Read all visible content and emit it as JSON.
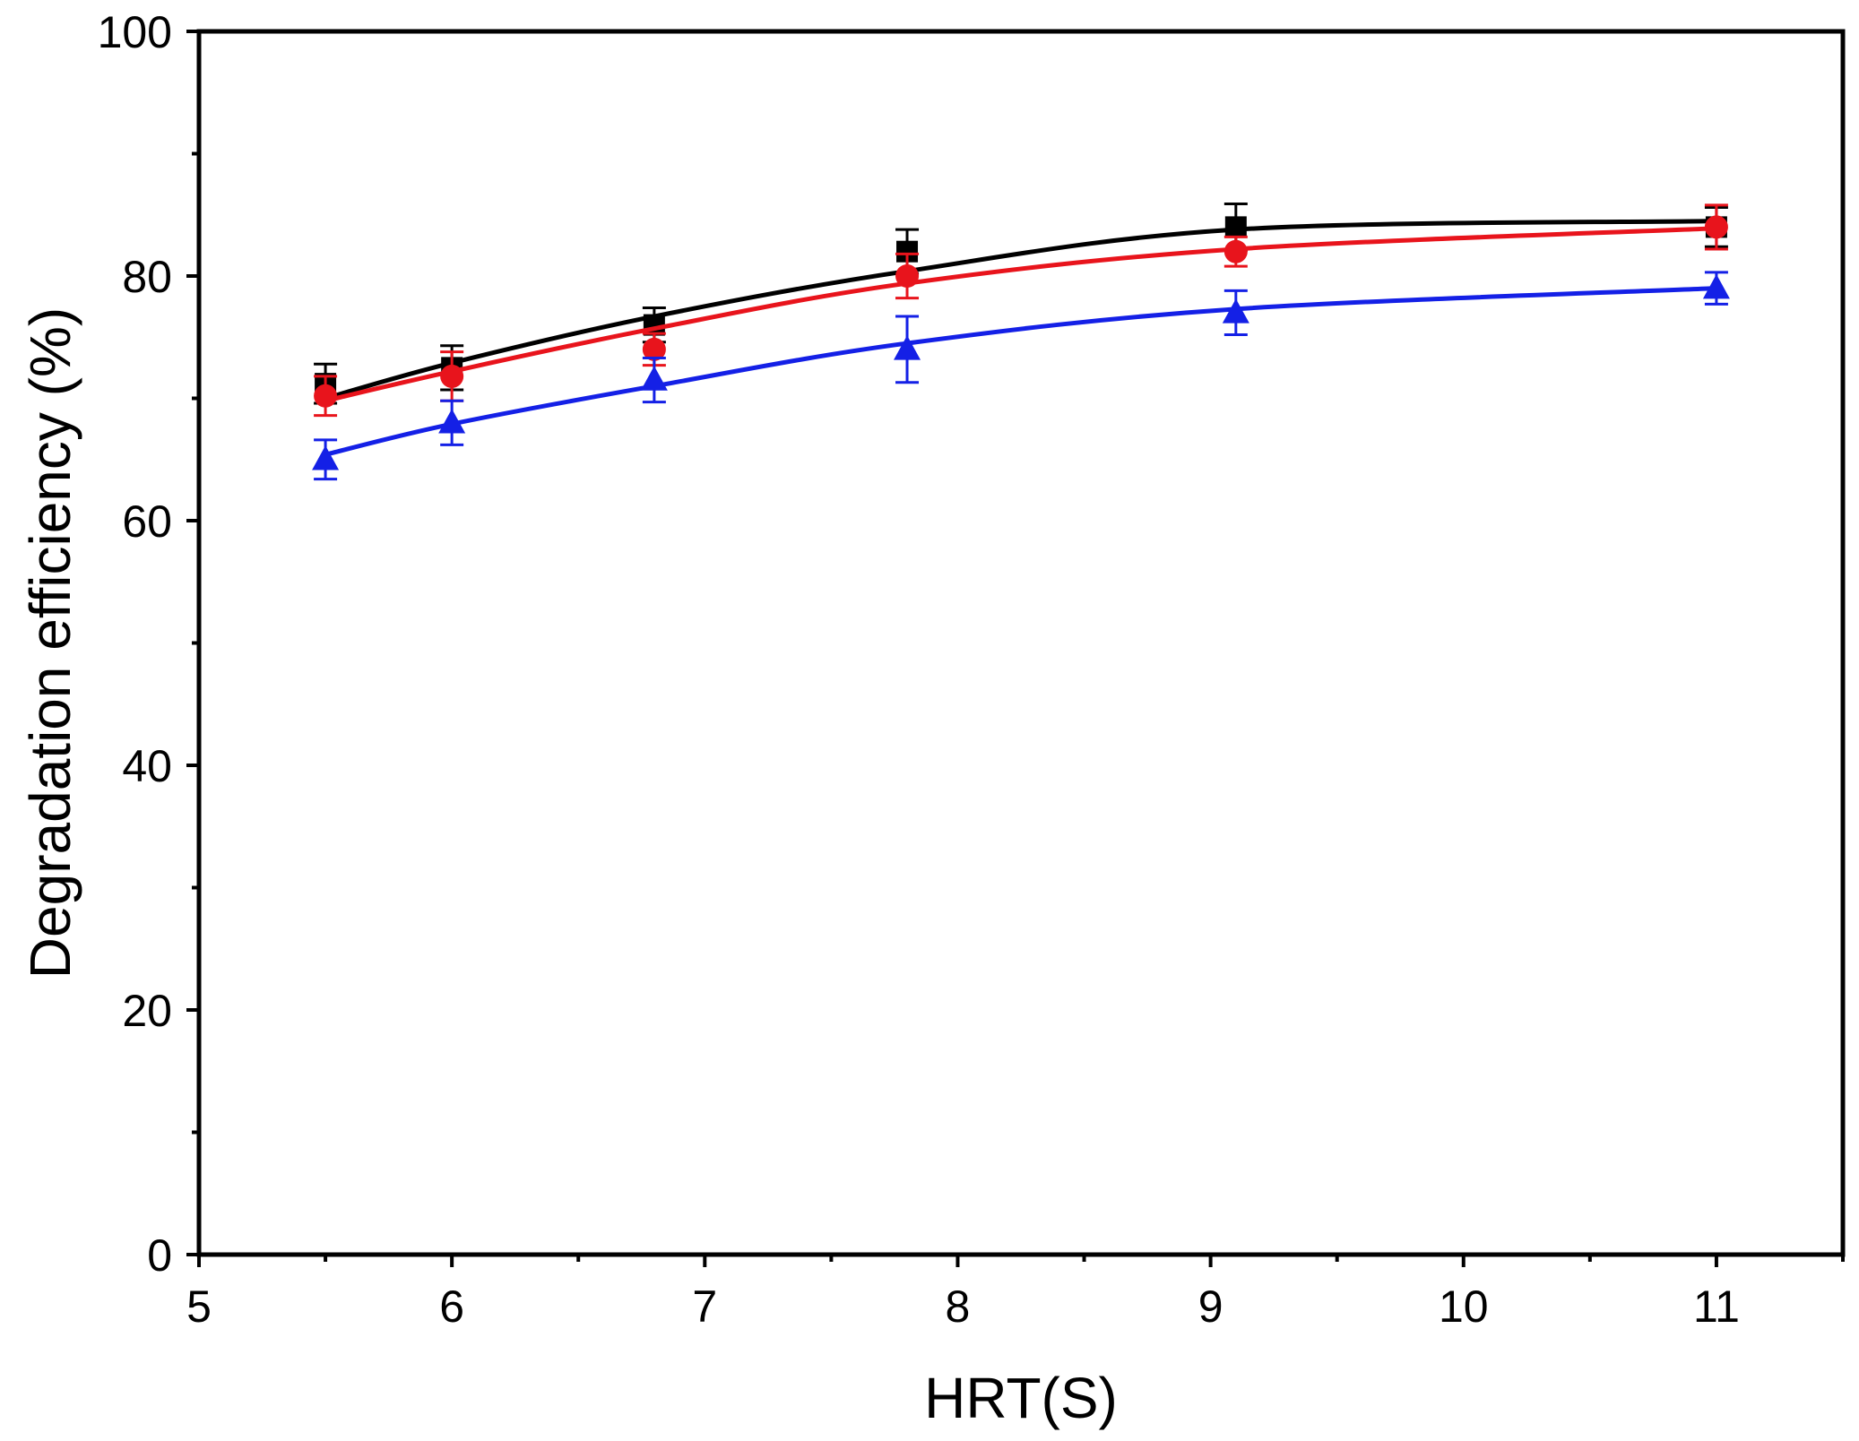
{
  "chart_data": {
    "type": "scatter",
    "title": "",
    "xlabel": "HRT(S)",
    "ylabel": "Degradation efficiency (%)",
    "xlim": [
      5,
      11.5
    ],
    "ylim": [
      0,
      100
    ],
    "x_ticks": [
      5,
      6,
      7,
      8,
      9,
      10,
      11
    ],
    "y_ticks": [
      0,
      20,
      40,
      60,
      80,
      100
    ],
    "x_minor_ticks": [
      5.5,
      6.5,
      7.5,
      8.5,
      9.5,
      10.5,
      11.5
    ],
    "y_minor_ticks": [
      10,
      30,
      50,
      70,
      90
    ],
    "grid": false,
    "legend": "none",
    "x": [
      5.5,
      6.0,
      6.8,
      7.8,
      9.1,
      11.0
    ],
    "series": [
      {
        "color": "#000000",
        "marker": "square",
        "values": [
          71.2,
          72.5,
          76.0,
          82.0,
          84.0,
          84.0
        ],
        "errors": [
          1.6,
          1.8,
          1.4,
          1.8,
          1.9,
          1.6
        ],
        "fit": [
          70.0,
          72.9,
          76.7,
          80.4,
          83.8,
          84.5
        ]
      },
      {
        "color": "#e8141c",
        "marker": "circle",
        "values": [
          70.2,
          71.8,
          74.0,
          80.0,
          82.0,
          84.0
        ],
        "errors": [
          1.6,
          2.0,
          1.3,
          1.8,
          1.2,
          1.8
        ],
        "fit": [
          69.8,
          72.2,
          75.7,
          79.4,
          82.2,
          83.9
        ]
      },
      {
        "color": "#1420e6",
        "marker": "triangle",
        "values": [
          65.0,
          68.0,
          71.5,
          74.0,
          77.0,
          79.0
        ],
        "errors": [
          1.6,
          1.8,
          1.8,
          2.7,
          1.8,
          1.3
        ],
        "fit": [
          65.4,
          67.9,
          71.0,
          74.5,
          77.3,
          79.0
        ]
      }
    ]
  }
}
